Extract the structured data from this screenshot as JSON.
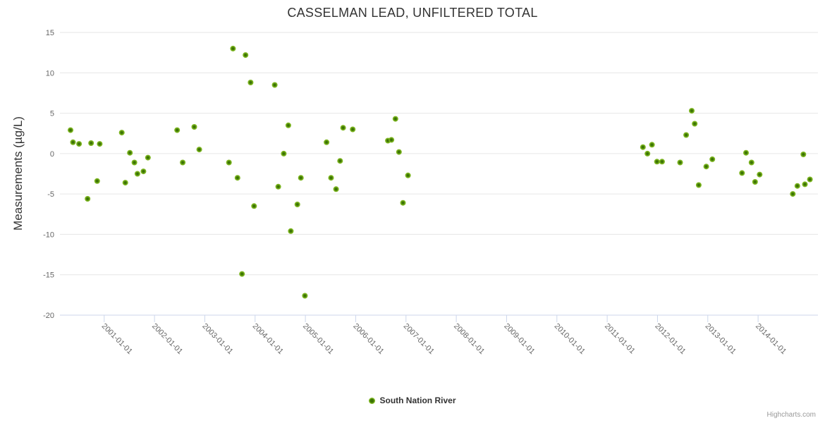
{
  "title": "CASSELMAN LEAD, UNFILTERED TOTAL",
  "watermark": "Highcharts.com",
  "legend": {
    "label": "South Nation River"
  },
  "colors": {
    "point_outer": "#7cb51f",
    "point_inner": "#3b7304",
    "grid": "#e6e6e6",
    "axis_line": "#ccd6eb",
    "tick": "#ccd6eb",
    "axis_label": "#666666",
    "title": "#333333",
    "watermark": "#999999"
  },
  "chart_data": {
    "type": "scatter",
    "title": "CASSELMAN LEAD, UNFILTERED TOTAL",
    "xlabel": "",
    "ylabel": "Measurements (µg/L)",
    "x_unit": "decimal_year",
    "xlim": [
      2000.12,
      2015.19
    ],
    "ylim": [
      -20,
      15
    ],
    "grid": "horizontal",
    "legend_position": "bottom-center",
    "yticks": [
      {
        "value": 15,
        "label": "15"
      },
      {
        "value": 10,
        "label": "10"
      },
      {
        "value": 5,
        "label": "5"
      },
      {
        "value": 0,
        "label": "0"
      },
      {
        "value": -5,
        "label": "-5"
      },
      {
        "value": -10,
        "label": "-10"
      },
      {
        "value": -15,
        "label": "-15"
      },
      {
        "value": -20,
        "label": "-20"
      }
    ],
    "xticks": [
      {
        "year": 2001,
        "label": "2001-01-01"
      },
      {
        "year": 2002,
        "label": "2002-01-01"
      },
      {
        "year": 2003,
        "label": "2003-01-01"
      },
      {
        "year": 2004,
        "label": "2004-01-01"
      },
      {
        "year": 2005,
        "label": "2005-01-01"
      },
      {
        "year": 2006,
        "label": "2006-01-01"
      },
      {
        "year": 2007,
        "label": "2007-01-01"
      },
      {
        "year": 2008,
        "label": "2008-01-01"
      },
      {
        "year": 2009,
        "label": "2009-01-01"
      },
      {
        "year": 2010,
        "label": "2010-01-01"
      },
      {
        "year": 2011,
        "label": "2011-01-01"
      },
      {
        "year": 2012,
        "label": "2012-01-01"
      },
      {
        "year": 2013,
        "label": "2013-01-01"
      },
      {
        "year": 2014,
        "label": "2014-01-01"
      }
    ],
    "series": [
      {
        "name": "South Nation River",
        "color": "#7cb51f",
        "points": [
          [
            2000.33,
            2.9
          ],
          [
            2000.38,
            1.4
          ],
          [
            2000.5,
            1.2
          ],
          [
            2000.67,
            -5.6
          ],
          [
            2000.74,
            1.3
          ],
          [
            2000.86,
            -3.4
          ],
          [
            2000.91,
            1.2
          ],
          [
            2001.35,
            2.6
          ],
          [
            2001.42,
            -3.6
          ],
          [
            2001.51,
            0.1
          ],
          [
            2001.6,
            -1.1
          ],
          [
            2001.66,
            -2.5
          ],
          [
            2001.78,
            -2.2
          ],
          [
            2001.87,
            -0.5
          ],
          [
            2002.45,
            2.9
          ],
          [
            2002.56,
            -1.1
          ],
          [
            2002.79,
            3.3
          ],
          [
            2002.89,
            0.5
          ],
          [
            2003.48,
            -1.1
          ],
          [
            2003.56,
            13.0
          ],
          [
            2003.65,
            -3.0
          ],
          [
            2003.74,
            -14.9
          ],
          [
            2003.81,
            12.2
          ],
          [
            2003.91,
            8.8
          ],
          [
            2003.98,
            -6.5
          ],
          [
            2004.39,
            8.5
          ],
          [
            2004.46,
            -4.1
          ],
          [
            2004.57,
            0.0
          ],
          [
            2004.66,
            3.5
          ],
          [
            2004.71,
            -9.6
          ],
          [
            2004.84,
            -6.3
          ],
          [
            2004.91,
            -3.0
          ],
          [
            2004.99,
            -17.6
          ],
          [
            2005.42,
            1.4
          ],
          [
            2005.51,
            -3.0
          ],
          [
            2005.61,
            -4.4
          ],
          [
            2005.69,
            -0.9
          ],
          [
            2005.75,
            3.2
          ],
          [
            2005.94,
            3.0
          ],
          [
            2006.64,
            1.6
          ],
          [
            2006.71,
            1.7
          ],
          [
            2006.79,
            4.3
          ],
          [
            2006.86,
            0.2
          ],
          [
            2006.94,
            -6.1
          ],
          [
            2007.04,
            -2.7
          ],
          [
            2011.71,
            0.8
          ],
          [
            2011.8,
            0.0
          ],
          [
            2011.89,
            1.1
          ],
          [
            2011.99,
            -1.0
          ],
          [
            2012.09,
            -1.0
          ],
          [
            2012.45,
            -1.1
          ],
          [
            2012.57,
            2.3
          ],
          [
            2012.68,
            5.3
          ],
          [
            2012.74,
            3.7
          ],
          [
            2012.82,
            -3.9
          ],
          [
            2012.97,
            -1.6
          ],
          [
            2013.09,
            -0.7
          ],
          [
            2013.68,
            -2.4
          ],
          [
            2013.76,
            0.1
          ],
          [
            2013.87,
            -1.1
          ],
          [
            2013.94,
            -3.5
          ],
          [
            2014.03,
            -2.6
          ],
          [
            2014.69,
            -5.0
          ],
          [
            2014.78,
            -4.0
          ],
          [
            2014.9,
            -0.1
          ],
          [
            2014.93,
            -3.8
          ],
          [
            2015.03,
            -3.2
          ]
        ]
      }
    ]
  }
}
